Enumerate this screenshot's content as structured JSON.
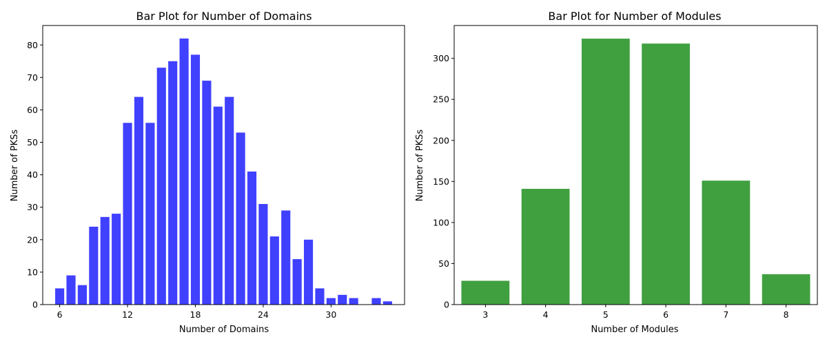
{
  "chart_data": [
    {
      "type": "bar",
      "title": "Bar Plot for Number of Domains",
      "xlabel": "Number of Domains",
      "ylabel": "Number of PKSs",
      "x": [
        6,
        7,
        8,
        9,
        10,
        11,
        12,
        13,
        14,
        15,
        16,
        17,
        18,
        19,
        20,
        21,
        22,
        23,
        24,
        25,
        26,
        27,
        28,
        29,
        30,
        31,
        32,
        34,
        35
      ],
      "values": [
        5,
        9,
        6,
        24,
        27,
        28,
        56,
        64,
        56,
        73,
        75,
        82,
        77,
        69,
        61,
        64,
        53,
        41,
        31,
        21,
        29,
        14,
        20,
        5,
        2,
        3,
        2,
        2,
        1
      ],
      "xlim": [
        4.5,
        36.5
      ],
      "ylim": [
        0,
        86
      ],
      "xticks": [
        6,
        12,
        18,
        24,
        30
      ],
      "yticks": [
        0,
        10,
        20,
        30,
        40,
        50,
        60,
        70,
        80
      ],
      "color": "#4040ff",
      "grid": false
    },
    {
      "type": "bar",
      "title": "Bar Plot for Number of Modules",
      "xlabel": "Number of Modules",
      "ylabel": "Number of PKSs",
      "x": [
        3,
        4,
        5,
        6,
        7,
        8
      ],
      "values": [
        29,
        141,
        324,
        318,
        151,
        37
      ],
      "xlim": [
        2.48,
        8.52
      ],
      "ylim": [
        0,
        340
      ],
      "xticks": [
        3,
        4,
        5,
        6,
        7,
        8
      ],
      "yticks": [
        0,
        50,
        100,
        150,
        200,
        250,
        300
      ],
      "color": "#40a040",
      "grid": false
    }
  ]
}
